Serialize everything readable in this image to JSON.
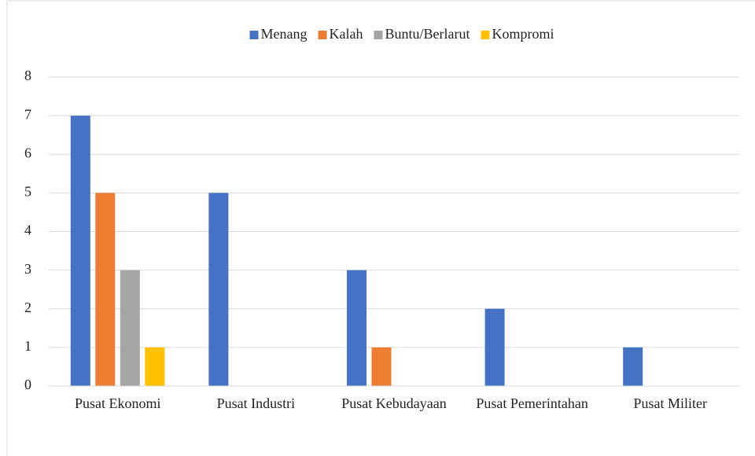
{
  "chart_data": {
    "type": "bar",
    "categories": [
      "Pusat Ekonomi",
      "Pusat Industri",
      "Pusat Kebudayaan",
      "Pusat Pemerintahan",
      "Pusat Militer"
    ],
    "series": [
      {
        "name": "Menang",
        "color": "#4472c4",
        "values": [
          7,
          5,
          3,
          2,
          1
        ]
      },
      {
        "name": "Kalah",
        "color": "#ed7d31",
        "values": [
          5,
          0,
          1,
          0,
          0
        ]
      },
      {
        "name": "Buntu/Berlarut",
        "color": "#a5a5a5",
        "values": [
          3,
          0,
          0,
          0,
          0
        ]
      },
      {
        "name": "Kompromi",
        "color": "#ffc000",
        "values": [
          1,
          0,
          0,
          0,
          0
        ]
      }
    ],
    "ylim": [
      0,
      8
    ],
    "yticks": [
      0,
      1,
      2,
      3,
      4,
      5,
      6,
      7,
      8
    ],
    "grid": true,
    "legend": "top"
  }
}
